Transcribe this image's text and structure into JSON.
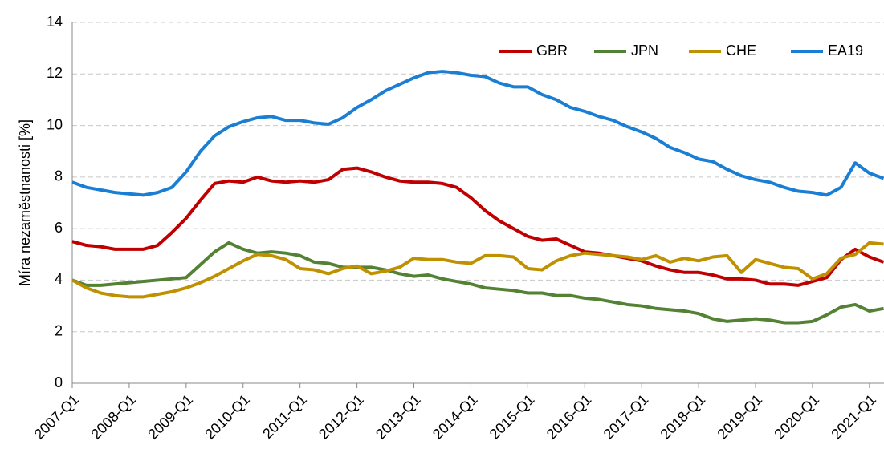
{
  "chart_data": {
    "type": "line",
    "y_label": "Míra nezaměstnanosti [%]",
    "categories": [
      "2007-Q1",
      null,
      null,
      null,
      "2008-Q1",
      null,
      null,
      null,
      "2009-Q1",
      null,
      null,
      null,
      "2010-Q1",
      null,
      null,
      null,
      "2011-Q1",
      null,
      null,
      null,
      "2012-Q1",
      null,
      null,
      null,
      "2013-Q1",
      null,
      null,
      null,
      "2014-Q1",
      null,
      null,
      null,
      "2015-Q1",
      null,
      null,
      null,
      "2016-Q1",
      null,
      null,
      null,
      "2017-Q1",
      null,
      null,
      null,
      "2018-Q1",
      null,
      null,
      null,
      "2019-Q1",
      null,
      null,
      null,
      "2020-Q1",
      null,
      null,
      null,
      "2021-Q1",
      null
    ],
    "series": [
      {
        "name": "GBR",
        "color": "#c00000",
        "values": [
          5.5,
          5.35,
          5.3,
          5.2,
          5.2,
          5.2,
          5.35,
          5.85,
          6.4,
          7.1,
          7.75,
          7.85,
          7.8,
          8.0,
          7.85,
          7.8,
          7.85,
          7.8,
          7.9,
          8.3,
          8.35,
          8.2,
          8.0,
          7.85,
          7.8,
          7.8,
          7.75,
          7.6,
          7.2,
          6.7,
          6.3,
          6.0,
          5.7,
          5.55,
          5.6,
          5.35,
          5.1,
          5.05,
          4.95,
          4.85,
          4.75,
          4.55,
          4.4,
          4.3,
          4.3,
          4.2,
          4.05,
          4.05,
          4.0,
          3.85,
          3.85,
          3.8,
          3.95,
          4.1,
          4.8,
          5.2,
          4.9,
          4.7
        ]
      },
      {
        "name": "JPN",
        "color": "#548235",
        "values": [
          4.0,
          3.8,
          3.8,
          3.85,
          3.9,
          3.95,
          4.0,
          4.05,
          4.1,
          4.6,
          5.1,
          5.45,
          5.2,
          5.05,
          5.1,
          5.05,
          4.95,
          4.7,
          4.65,
          4.5,
          4.5,
          4.5,
          4.4,
          4.25,
          4.15,
          4.2,
          4.05,
          3.95,
          3.85,
          3.7,
          3.65,
          3.6,
          3.5,
          3.5,
          3.4,
          3.4,
          3.3,
          3.25,
          3.15,
          3.05,
          3.0,
          2.9,
          2.85,
          2.8,
          2.7,
          2.5,
          2.4,
          2.45,
          2.5,
          2.45,
          2.35,
          2.35,
          2.4,
          2.65,
          2.95,
          3.05,
          2.8,
          2.9
        ]
      },
      {
        "name": "CHE",
        "color": "#bf9000",
        "values": [
          4.0,
          3.7,
          3.5,
          3.4,
          3.35,
          3.35,
          3.45,
          3.55,
          3.7,
          3.9,
          4.15,
          4.45,
          4.75,
          5.0,
          4.95,
          4.8,
          4.45,
          4.4,
          4.25,
          4.45,
          4.55,
          4.25,
          4.35,
          4.5,
          4.85,
          4.8,
          4.8,
          4.7,
          4.65,
          4.95,
          4.95,
          4.9,
          4.45,
          4.4,
          4.75,
          4.95,
          5.05,
          5.0,
          4.95,
          4.9,
          4.8,
          4.95,
          4.7,
          4.85,
          4.75,
          4.9,
          4.95,
          4.3,
          4.8,
          4.65,
          4.5,
          4.45,
          4.05,
          4.25,
          4.85,
          5.0,
          5.45,
          5.4
        ]
      },
      {
        "name": "EA19",
        "color": "#1a7fd4",
        "values": [
          7.8,
          7.6,
          7.5,
          7.4,
          7.35,
          7.3,
          7.4,
          7.6,
          8.2,
          9.0,
          9.6,
          9.95,
          10.15,
          10.3,
          10.35,
          10.2,
          10.2,
          10.1,
          10.05,
          10.3,
          10.7,
          11.0,
          11.35,
          11.6,
          11.85,
          12.05,
          12.1,
          12.05,
          11.95,
          11.9,
          11.65,
          11.5,
          11.5,
          11.2,
          11.0,
          10.7,
          10.55,
          10.35,
          10.2,
          9.95,
          9.75,
          9.5,
          9.15,
          8.95,
          8.7,
          8.6,
          8.3,
          8.05,
          7.9,
          7.8,
          7.6,
          7.45,
          7.4,
          7.3,
          7.6,
          8.55,
          8.15,
          7.95
        ]
      }
    ],
    "ylim": [
      0,
      14
    ],
    "yticks": [
      0,
      2,
      4,
      6,
      8,
      10,
      12,
      14
    ],
    "grid": true,
    "legend": "top-right"
  }
}
